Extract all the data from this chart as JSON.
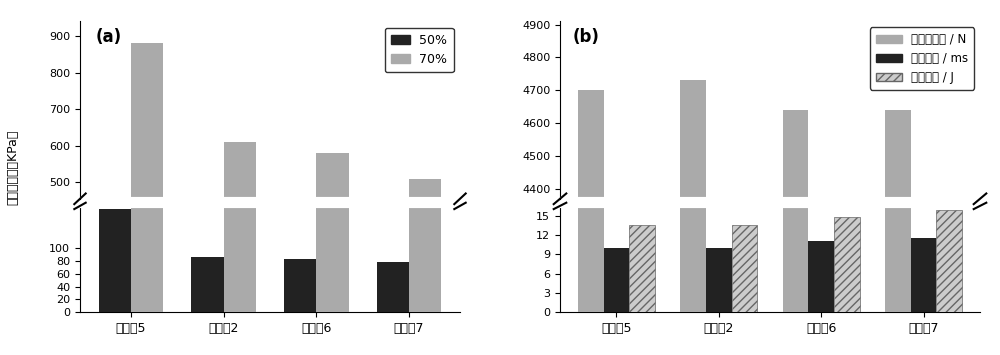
{
  "categories": [
    "实施例5",
    "实施例2",
    "实施例6",
    "实施例7"
  ],
  "a_50pct": [
    160,
    86,
    82,
    78
  ],
  "a_70pct": [
    880,
    610,
    580,
    508
  ],
  "a_ylabel": "压缩应力／（KPa）",
  "a_label_50": "50%",
  "a_label_70": "70%",
  "a_ylow_lim": [
    0,
    165
  ],
  "a_yhigh_lim": [
    455,
    940
  ],
  "a_ylow_ticks": [
    0,
    20,
    40,
    60,
    80,
    100
  ],
  "a_yhigh_ticks": [
    500,
    600,
    700,
    800,
    900
  ],
  "b_gray": [
    4700,
    4730,
    4640,
    4640
  ],
  "b_black": [
    10,
    10,
    11,
    11.5
  ],
  "b_hatch": [
    13.5,
    13.5,
    14.8,
    15.8
  ],
  "b_legend1": "接触力峰値 / N",
  "b_legend2": "冲击时间 / ms",
  "b_legend3": "能量吸收 / J",
  "b_ylow_lim": [
    0,
    16.5
  ],
  "b_yhigh_lim": [
    4370,
    4910
  ],
  "b_ylow_ticks": [
    0,
    3,
    6,
    9,
    12,
    15
  ],
  "b_yhigh_ticks": [
    4400,
    4500,
    4600,
    4700,
    4800,
    4900
  ],
  "color_dark": "#222222",
  "color_gray": "#aaaaaa",
  "color_hatch_face": "#cccccc",
  "panel_a": "(a)",
  "panel_b": "(b)"
}
